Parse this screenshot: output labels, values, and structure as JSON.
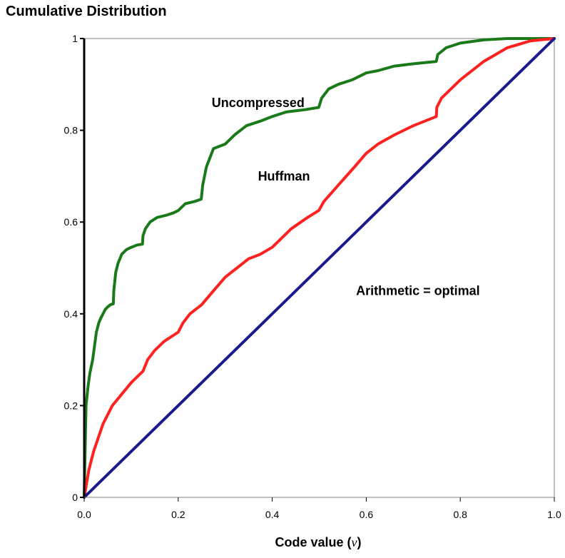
{
  "chart_data": {
    "type": "line",
    "title": "Cumulative Distribution",
    "xlabel": {
      "prefix": "Code value (",
      "symbol": "v",
      "suffix": ")"
    },
    "ylabel": "",
    "xlim": [
      0,
      1
    ],
    "ylim": [
      0,
      1
    ],
    "x_ticks": [
      0,
      0.2,
      0.4,
      0.6,
      0.8,
      1
    ],
    "x_tick_labels": [
      "0.0",
      "0.2",
      "0.4",
      "0.6",
      "0.8",
      "1.0"
    ],
    "y_ticks": [
      0,
      0.2,
      0.4,
      0.6,
      0.8,
      1
    ],
    "y_tick_labels": [
      "0",
      "0.2",
      "0.4",
      "0.6",
      "0.8",
      "1"
    ],
    "grid": false,
    "legend": "none",
    "annotations": [
      {
        "text": "Uncompressed",
        "x": 0.37,
        "y": 0.86
      },
      {
        "text": "Huffman",
        "x": 0.425,
        "y": 0.7
      },
      {
        "text": "Arithmetic = optimal",
        "x": 0.71,
        "y": 0.45
      }
    ],
    "series": [
      {
        "color": "#1a7a1a",
        "points": [
          [
            0,
            0
          ],
          [
            0.002,
            0.1
          ],
          [
            0.004,
            0.2
          ],
          [
            0.008,
            0.24
          ],
          [
            0.012,
            0.27
          ],
          [
            0.018,
            0.3
          ],
          [
            0.022,
            0.33
          ],
          [
            0.026,
            0.36
          ],
          [
            0.031,
            0.38
          ],
          [
            0.035,
            0.39
          ],
          [
            0.04,
            0.4
          ],
          [
            0.045,
            0.41
          ],
          [
            0.05,
            0.415
          ],
          [
            0.056,
            0.42
          ],
          [
            0.062,
            0.422
          ],
          [
            0.063,
            0.45
          ],
          [
            0.067,
            0.49
          ],
          [
            0.072,
            0.51
          ],
          [
            0.08,
            0.53
          ],
          [
            0.09,
            0.54
          ],
          [
            0.1,
            0.545
          ],
          [
            0.113,
            0.55
          ],
          [
            0.124,
            0.552
          ],
          [
            0.125,
            0.57
          ],
          [
            0.13,
            0.585
          ],
          [
            0.14,
            0.6
          ],
          [
            0.155,
            0.61
          ],
          [
            0.175,
            0.615
          ],
          [
            0.19,
            0.62
          ],
          [
            0.2,
            0.625
          ],
          [
            0.215,
            0.64
          ],
          [
            0.235,
            0.645
          ],
          [
            0.249,
            0.65
          ],
          [
            0.252,
            0.68
          ],
          [
            0.26,
            0.72
          ],
          [
            0.275,
            0.76
          ],
          [
            0.3,
            0.77
          ],
          [
            0.32,
            0.79
          ],
          [
            0.345,
            0.81
          ],
          [
            0.375,
            0.82
          ],
          [
            0.4,
            0.83
          ],
          [
            0.43,
            0.84
          ],
          [
            0.47,
            0.845
          ],
          [
            0.499,
            0.85
          ],
          [
            0.505,
            0.87
          ],
          [
            0.52,
            0.89
          ],
          [
            0.54,
            0.9
          ],
          [
            0.57,
            0.91
          ],
          [
            0.6,
            0.925
          ],
          [
            0.625,
            0.93
          ],
          [
            0.66,
            0.94
          ],
          [
            0.7,
            0.945
          ],
          [
            0.749,
            0.95
          ],
          [
            0.752,
            0.965
          ],
          [
            0.77,
            0.98
          ],
          [
            0.8,
            0.99
          ],
          [
            0.85,
            0.997
          ],
          [
            0.9,
            1.0
          ],
          [
            1.0,
            1.0
          ]
        ]
      },
      {
        "color": "#ff2020",
        "points": [
          [
            0,
            0
          ],
          [
            0.01,
            0.06
          ],
          [
            0.02,
            0.1
          ],
          [
            0.03,
            0.13
          ],
          [
            0.04,
            0.16
          ],
          [
            0.05,
            0.18
          ],
          [
            0.06,
            0.2
          ],
          [
            0.08,
            0.225
          ],
          [
            0.1,
            0.25
          ],
          [
            0.115,
            0.265
          ],
          [
            0.125,
            0.275
          ],
          [
            0.135,
            0.3
          ],
          [
            0.15,
            0.32
          ],
          [
            0.17,
            0.34
          ],
          [
            0.2,
            0.36
          ],
          [
            0.21,
            0.38
          ],
          [
            0.225,
            0.4
          ],
          [
            0.25,
            0.42
          ],
          [
            0.275,
            0.45
          ],
          [
            0.3,
            0.48
          ],
          [
            0.325,
            0.5
          ],
          [
            0.35,
            0.52
          ],
          [
            0.375,
            0.53
          ],
          [
            0.4,
            0.545
          ],
          [
            0.42,
            0.565
          ],
          [
            0.44,
            0.585
          ],
          [
            0.475,
            0.61
          ],
          [
            0.499,
            0.625
          ],
          [
            0.51,
            0.645
          ],
          [
            0.54,
            0.68
          ],
          [
            0.575,
            0.72
          ],
          [
            0.6,
            0.75
          ],
          [
            0.625,
            0.77
          ],
          [
            0.66,
            0.79
          ],
          [
            0.7,
            0.81
          ],
          [
            0.749,
            0.83
          ],
          [
            0.75,
            0.85
          ],
          [
            0.76,
            0.87
          ],
          [
            0.8,
            0.91
          ],
          [
            0.85,
            0.95
          ],
          [
            0.9,
            0.98
          ],
          [
            0.95,
            0.995
          ],
          [
            1.0,
            1.0
          ]
        ]
      },
      {
        "color": "#1a1a8c",
        "points": [
          [
            0,
            0
          ],
          [
            1,
            1
          ]
        ]
      }
    ]
  }
}
